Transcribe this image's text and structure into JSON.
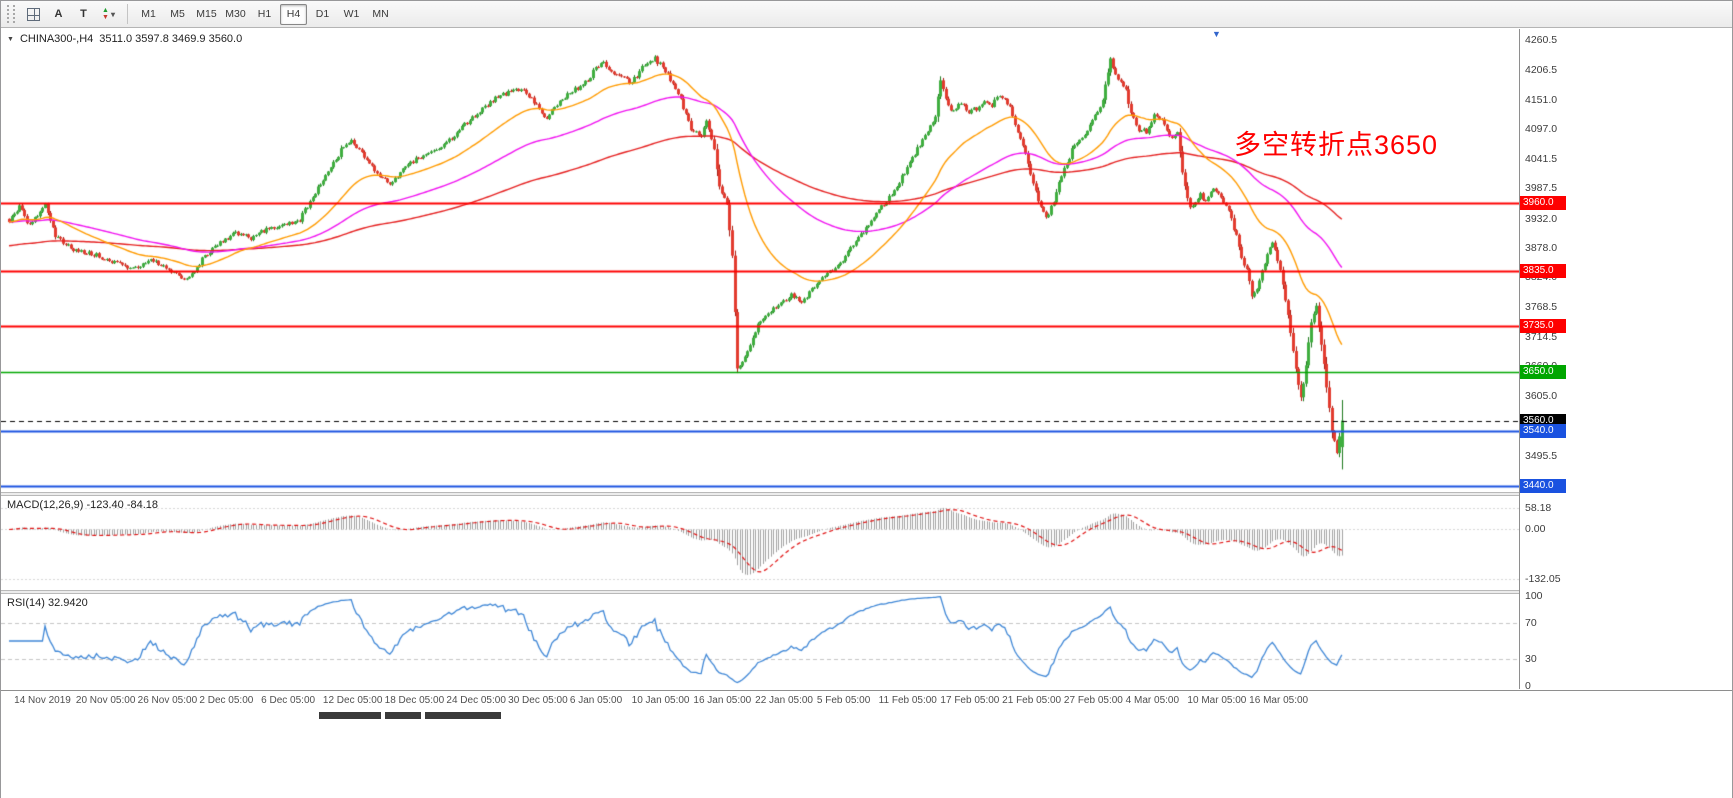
{
  "toolbar": {
    "a_label": "A",
    "t_label": "T",
    "timeframes": [
      "M1",
      "M5",
      "M15",
      "M30",
      "H1",
      "H4",
      "D1",
      "W1",
      "MN"
    ],
    "selected_timeframe": "H4"
  },
  "chart": {
    "symbol_title": "CHINA300-,H4",
    "ohlc_title": "3511.0 3597.8 3469.9 3560.0",
    "annotation": {
      "text": "多空转折点3650",
      "color": "#ff0000"
    },
    "price_ticks": [
      "4260.5",
      "4206.5",
      "4151.0",
      "4097.0",
      "4041.5",
      "3987.5",
      "3932.0",
      "3878.0",
      "3824.0",
      "3768.5",
      "3714.5",
      "3660.0",
      "3605.0",
      "3550.5",
      "3495.5",
      "3441.0"
    ],
    "hlines": [
      {
        "value": 3960.0,
        "label": "3960.0",
        "color": "#fe0000",
        "width": 2,
        "style": "solid"
      },
      {
        "value": 3835.0,
        "label": "3835.0",
        "color": "#fe0000",
        "width": 2,
        "style": "solid"
      },
      {
        "value": 3735.0,
        "label": "3735.0",
        "color": "#fe0000",
        "width": 2,
        "style": "solid"
      },
      {
        "value": 3650.0,
        "label": "3650.0",
        "color": "#00a600",
        "width": 1.6,
        "style": "solid"
      },
      {
        "value": 3560.0,
        "label": "3560.0",
        "color": "#000000",
        "width": 1,
        "style": "dash"
      },
      {
        "value": 3540.0,
        "label": "3540.0",
        "color": "#1a52e0",
        "width": 2,
        "style": "solid"
      },
      {
        "value": 3440.0,
        "label": "3440.0",
        "color": "#1a52e0",
        "width": 2,
        "style": "solid"
      }
    ]
  },
  "macd": {
    "title": "MACD(12,26,9) -123.40 -84.18",
    "value_main": -123.4,
    "value_signal": -84.18,
    "ticks": [
      {
        "v": 58.18,
        "label": "58.18"
      },
      {
        "v": 0,
        "label": "0.00"
      },
      {
        "v": -132.05,
        "label": "-132.05"
      }
    ]
  },
  "rsi": {
    "title": "RSI(14) 32.9420",
    "value": 32.942,
    "ticks": [
      {
        "v": 100,
        "label": "100"
      },
      {
        "v": 70,
        "label": "70"
      },
      {
        "v": 30,
        "label": "30"
      },
      {
        "v": 0,
        "label": "0"
      }
    ]
  },
  "chart_data": {
    "type": "candlestick",
    "symbol": "CHINA300-",
    "timeframe": "H4",
    "title": "CHINA300-,H4 3511.0 3597.8 3469.9 3560.0",
    "current_bar_ohlc": {
      "open": 3511.0,
      "high": 3597.8,
      "low": 3469.9,
      "close": 3560.0
    },
    "y_axis_range": [
      3432,
      4274
    ],
    "x_axis_labels": [
      "14 Nov 2019",
      "20 Nov 05:00",
      "26 Nov 05:00",
      "2 Dec 05:00",
      "6 Dec 05:00",
      "12 Dec 05:00",
      "18 Dec 05:00",
      "24 Dec 05:00",
      "30 Dec 05:00",
      "6 Jan 05:00",
      "10 Jan 05:00",
      "16 Jan 05:00",
      "22 Jan 05:00",
      "5 Feb 05:00",
      "11 Feb 05:00",
      "17 Feb 05:00",
      "21 Feb 05:00",
      "27 Feb 05:00",
      "4 Mar 05:00",
      "10 Mar 05:00",
      "16 Mar 05:00"
    ],
    "first_label_bar": 2,
    "bars_per_label": 24,
    "bar_count": 519,
    "noise_amplitude": 9,
    "close_keypoints": [
      [
        0,
        3928
      ],
      [
        4,
        3952
      ],
      [
        8,
        3918
      ],
      [
        14,
        3960
      ],
      [
        18,
        3900
      ],
      [
        24,
        3876
      ],
      [
        32,
        3868
      ],
      [
        40,
        3852
      ],
      [
        48,
        3840
      ],
      [
        56,
        3856
      ],
      [
        62,
        3836
      ],
      [
        69,
        3820
      ],
      [
        76,
        3862
      ],
      [
        82,
        3890
      ],
      [
        88,
        3904
      ],
      [
        94,
        3896
      ],
      [
        100,
        3912
      ],
      [
        108,
        3922
      ],
      [
        113,
        3930
      ],
      [
        118,
        3972
      ],
      [
        124,
        4018
      ],
      [
        129,
        4058
      ],
      [
        133,
        4078
      ],
      [
        139,
        4040
      ],
      [
        144,
        4008
      ],
      [
        148,
        3996
      ],
      [
        153,
        4022
      ],
      [
        158,
        4042
      ],
      [
        163,
        4052
      ],
      [
        168,
        4062
      ],
      [
        174,
        4090
      ],
      [
        180,
        4118
      ],
      [
        187,
        4148
      ],
      [
        193,
        4162
      ],
      [
        199,
        4170
      ],
      [
        204,
        4148
      ],
      [
        209,
        4116
      ],
      [
        214,
        4150
      ],
      [
        219,
        4168
      ],
      [
        224,
        4182
      ],
      [
        230,
        4222
      ],
      [
        236,
        4196
      ],
      [
        242,
        4182
      ],
      [
        247,
        4216
      ],
      [
        251,
        4228
      ],
      [
        256,
        4196
      ],
      [
        261,
        4150
      ],
      [
        265,
        4096
      ],
      [
        269,
        4086
      ],
      [
        271,
        4110
      ],
      [
        274,
        4060
      ],
      [
        276,
        3988
      ],
      [
        279,
        3958
      ],
      [
        281,
        3860
      ],
      [
        283,
        3652
      ],
      [
        285,
        3668
      ],
      [
        287,
        3692
      ],
      [
        292,
        3746
      ],
      [
        298,
        3772
      ],
      [
        304,
        3790
      ],
      [
        308,
        3778
      ],
      [
        312,
        3800
      ],
      [
        317,
        3826
      ],
      [
        322,
        3844
      ],
      [
        327,
        3876
      ],
      [
        332,
        3908
      ],
      [
        336,
        3936
      ],
      [
        341,
        3966
      ],
      [
        345,
        3992
      ],
      [
        349,
        4026
      ],
      [
        353,
        4060
      ],
      [
        357,
        4094
      ],
      [
        360,
        4124
      ],
      [
        362,
        4186
      ],
      [
        364,
        4150
      ],
      [
        367,
        4128
      ],
      [
        370,
        4146
      ],
      [
        373,
        4130
      ],
      [
        376,
        4134
      ],
      [
        379,
        4146
      ],
      [
        382,
        4140
      ],
      [
        384,
        4158
      ],
      [
        387,
        4150
      ],
      [
        389,
        4138
      ],
      [
        392,
        4090
      ],
      [
        395,
        4048
      ],
      [
        398,
        4000
      ],
      [
        400,
        3962
      ],
      [
        403,
        3932
      ],
      [
        406,
        3962
      ],
      [
        408,
        3998
      ],
      [
        411,
        4034
      ],
      [
        413,
        4058
      ],
      [
        416,
        4080
      ],
      [
        419,
        4092
      ],
      [
        422,
        4124
      ],
      [
        425,
        4150
      ],
      [
        428,
        4226
      ],
      [
        431,
        4188
      ],
      [
        434,
        4170
      ],
      [
        436,
        4124
      ],
      [
        439,
        4096
      ],
      [
        442,
        4092
      ],
      [
        445,
        4120
      ],
      [
        448,
        4118
      ],
      [
        450,
        4096
      ],
      [
        452,
        4080
      ],
      [
        454,
        4088
      ],
      [
        456,
        4018
      ],
      [
        459,
        3952
      ],
      [
        461,
        3964
      ],
      [
        463,
        3976
      ],
      [
        465,
        3962
      ],
      [
        467,
        3984
      ],
      [
        469,
        3986
      ],
      [
        471,
        3972
      ],
      [
        473,
        3958
      ],
      [
        475,
        3930
      ],
      [
        477,
        3900
      ],
      [
        479,
        3862
      ],
      [
        481,
        3836
      ],
      [
        483,
        3790
      ],
      [
        485,
        3802
      ],
      [
        486,
        3822
      ],
      [
        488,
        3852
      ],
      [
        490,
        3876
      ],
      [
        491,
        3890
      ],
      [
        493,
        3856
      ],
      [
        494,
        3840
      ],
      [
        496,
        3782
      ],
      [
        498,
        3722
      ],
      [
        500,
        3654
      ],
      [
        502,
        3602
      ],
      [
        504,
        3662
      ],
      [
        506,
        3742
      ],
      [
        508,
        3772
      ],
      [
        510,
        3704
      ],
      [
        512,
        3622
      ],
      [
        514,
        3544
      ],
      [
        516,
        3504
      ],
      [
        518,
        3560
      ]
    ],
    "moving_averages": [
      {
        "name": "ema-slow",
        "period": 200,
        "seed": 3882,
        "color": "#e52222"
      },
      {
        "name": "ema-mid",
        "period": 90,
        "color": "#f013f0"
      },
      {
        "name": "ema-fast",
        "period": 34,
        "color": "#ff9b00"
      }
    ],
    "horizontal_levels": [
      3960,
      3835,
      3735,
      3650,
      3560,
      3540,
      3440
    ],
    "macd": {
      "fast": 12,
      "slow": 26,
      "signal": 9,
      "panel_range": [
        90,
        -160
      ]
    },
    "rsi": {
      "period": 14,
      "panel_range": [
        102,
        -2
      ],
      "levels": [
        70,
        30
      ]
    },
    "colors": {
      "up_fill": "#3fae3f",
      "up_border": "#1e7a1e",
      "down_fill": "#e23b2f",
      "down_border": "#a81c12",
      "histogram": "#a0a0a0",
      "signal": "#e01414",
      "rsi_line": "#3f87d6",
      "level_line": "#c4c4c4"
    }
  }
}
